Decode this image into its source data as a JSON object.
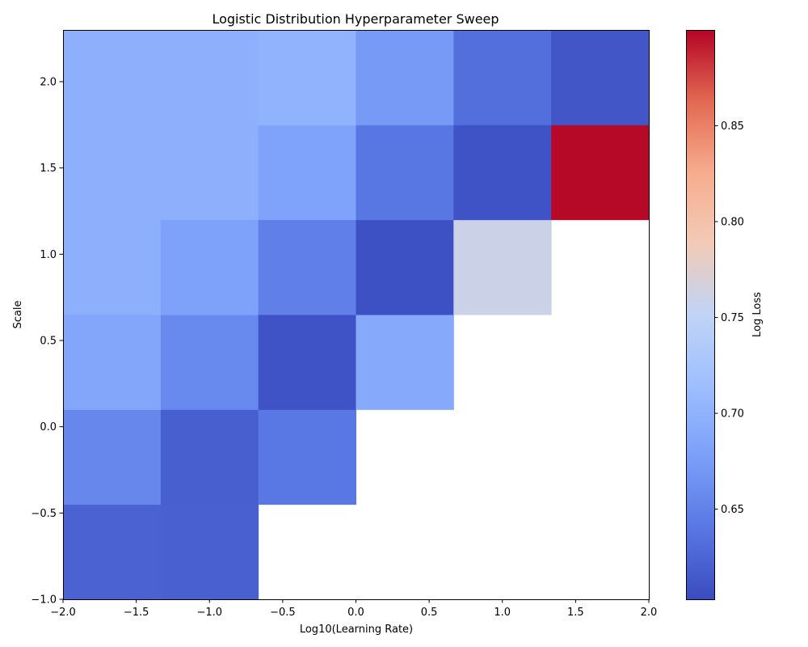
{
  "chart_data": {
    "type": "heatmap",
    "title": "Logistic Distribution Hyperparameter Sweep",
    "xlabel": "Log10(Learning Rate)",
    "ylabel": "Scale",
    "xlim": [
      -2.0,
      2.0
    ],
    "ylim": [
      -1.0,
      2.3
    ],
    "x_edges": [
      -2.0,
      -1.3333,
      -0.6667,
      0.0,
      0.6667,
      1.3333,
      2.0
    ],
    "y_edges": [
      -1.0,
      -0.45,
      0.1,
      0.65,
      1.2,
      1.75,
      2.3
    ],
    "x_ticks": [
      -2.0,
      -1.5,
      -1.0,
      -0.5,
      0.0,
      0.5,
      1.0,
      1.5,
      2.0
    ],
    "x_tick_labels": [
      "−2.0",
      "−1.5",
      "−1.0",
      "−0.5",
      "0.0",
      "0.5",
      "1.0",
      "1.5",
      "2.0"
    ],
    "y_ticks": [
      -1.0,
      -0.5,
      0.0,
      0.5,
      1.0,
      1.5,
      2.0
    ],
    "y_tick_labels": [
      "−1.0",
      "−0.5",
      "0.0",
      "0.5",
      "1.0",
      "1.5",
      "2.0"
    ],
    "z": [
      [
        0.622,
        0.62,
        null,
        null,
        null,
        null
      ],
      [
        0.655,
        0.619,
        0.641,
        null,
        null,
        null
      ],
      [
        0.686,
        0.657,
        0.609,
        0.689,
        null,
        null
      ],
      [
        0.697,
        0.68,
        0.648,
        0.607,
        0.76,
        null
      ],
      [
        0.696,
        0.696,
        0.682,
        0.64,
        0.609,
        0.898
      ],
      [
        0.697,
        0.697,
        0.701,
        0.673,
        0.633,
        0.612
      ]
    ],
    "colorbar": {
      "label": "Log Loss",
      "range": [
        0.603,
        0.9
      ],
      "ticks": [
        0.65,
        0.7,
        0.75,
        0.8,
        0.85
      ],
      "tick_labels": [
        "0.65",
        "0.70",
        "0.75",
        "0.80",
        "0.85"
      ],
      "colormap": "coolwarm"
    },
    "grid": false
  }
}
